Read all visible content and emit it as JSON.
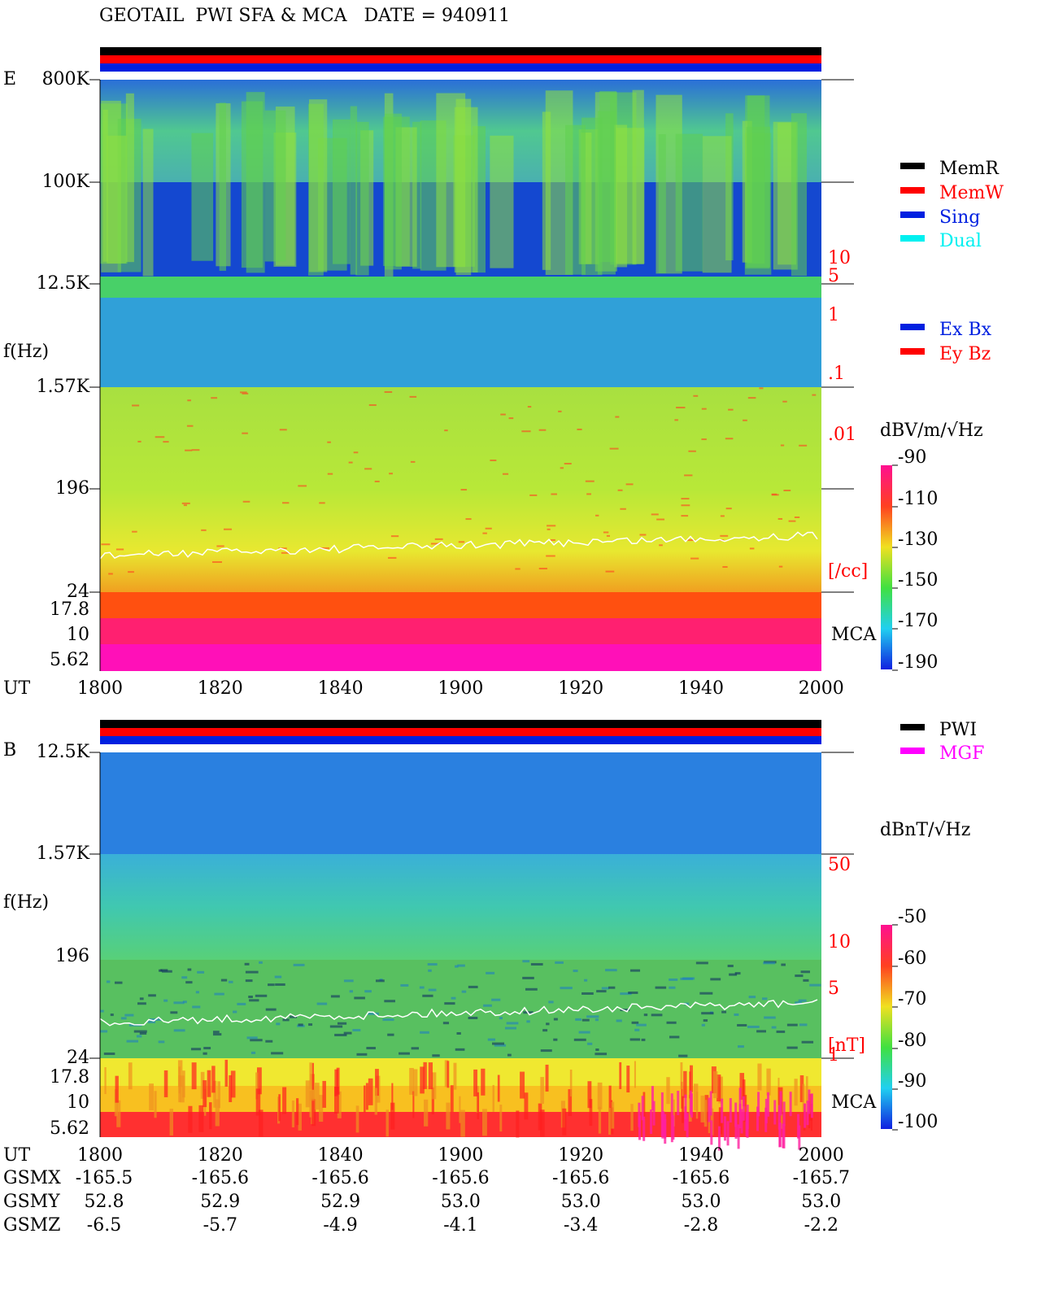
{
  "title": "GEOTAIL  PWI SFA & MCA   DATE = 940911",
  "panels": [
    {
      "label": "E",
      "freq_labels": [
        "800K",
        "100K",
        "12.5K",
        "1.57K",
        "196",
        "24",
        "17.8",
        "10",
        "5.62"
      ],
      "axis_label": "f(Hz)",
      "right_labels": [
        "10",
        "5",
        "1",
        ".1",
        ".01",
        "[/cc]"
      ],
      "mca": "MCA",
      "time_label": "UT",
      "time_ticks": [
        "1800",
        "1820",
        "1840",
        "1900",
        "1920",
        "1940",
        "2000"
      ],
      "unit": "dBV/m/√Hz",
      "colorbar_ticks": [
        "-90",
        "-110",
        "-130",
        "-150",
        "-170",
        "-190"
      ]
    },
    {
      "label": "B",
      "freq_labels": [
        "12.5K",
        "1.57K",
        "196",
        "24",
        "17.8",
        "10",
        "5.62"
      ],
      "axis_label": "f(Hz)",
      "right_labels": [
        "50",
        "10",
        "5",
        "[nT]",
        "1"
      ],
      "mca": "MCA",
      "time_label": "UT",
      "time_ticks": [
        "1800",
        "1820",
        "1840",
        "1900",
        "1920",
        "1940",
        "2000"
      ],
      "unit": "dBnT/√Hz",
      "colorbar_ticks": [
        "-50",
        "-60",
        "-70",
        "-80",
        "-90",
        "-100"
      ]
    }
  ],
  "legend_mode": [
    "MemR",
    "MemW",
    "Sing",
    "Dual"
  ],
  "legend_comp": [
    "Ex Bx",
    "Ey Bz"
  ],
  "legend_source": [
    "PWI",
    "MGF"
  ],
  "orbit": [
    {
      "label": "GSMX",
      "values": [
        "-165.5",
        "-165.6",
        "-165.6",
        "-165.6",
        "-165.6",
        "-165.6",
        "-165.7"
      ]
    },
    {
      "label": "GSMY",
      "values": [
        "52.8",
        "52.9",
        "52.9",
        "53.0",
        "53.0",
        "53.0",
        "53.0"
      ]
    },
    {
      "label": "GSMZ",
      "values": [
        "-6.5",
        "-5.7",
        "-4.9",
        "-4.1",
        "-3.4",
        "-2.8",
        "-2.2"
      ]
    }
  ]
}
